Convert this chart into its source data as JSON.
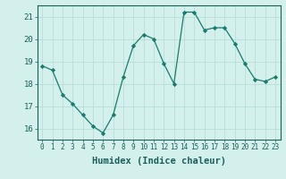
{
  "x": [
    0,
    1,
    2,
    3,
    4,
    5,
    6,
    7,
    8,
    9,
    10,
    11,
    12,
    13,
    14,
    15,
    16,
    17,
    18,
    19,
    20,
    21,
    22,
    23
  ],
  "y": [
    18.8,
    18.6,
    17.5,
    17.1,
    16.6,
    16.1,
    15.8,
    16.6,
    18.3,
    19.7,
    20.2,
    20.0,
    18.9,
    18.0,
    21.2,
    21.2,
    20.4,
    20.5,
    20.5,
    19.8,
    18.9,
    18.2,
    18.1,
    18.3
  ],
  "line_color": "#1a7a6e",
  "marker": "D",
  "markersize": 2.2,
  "bg_color": "#d4f0ec",
  "grid_color": "#b8ddd8",
  "xlabel": "Humidex (Indice chaleur)",
  "ylim": [
    15.5,
    21.5
  ],
  "yticks": [
    16,
    17,
    18,
    19,
    20,
    21
  ],
  "xticks": [
    0,
    1,
    2,
    3,
    4,
    5,
    6,
    7,
    8,
    9,
    10,
    11,
    12,
    13,
    14,
    15,
    16,
    17,
    18,
    19,
    20,
    21,
    22,
    23
  ],
  "tick_color": "#1a5f5a",
  "xlabel_fontsize": 7.5,
  "ytick_fontsize": 6.5,
  "xtick_fontsize": 5.5
}
